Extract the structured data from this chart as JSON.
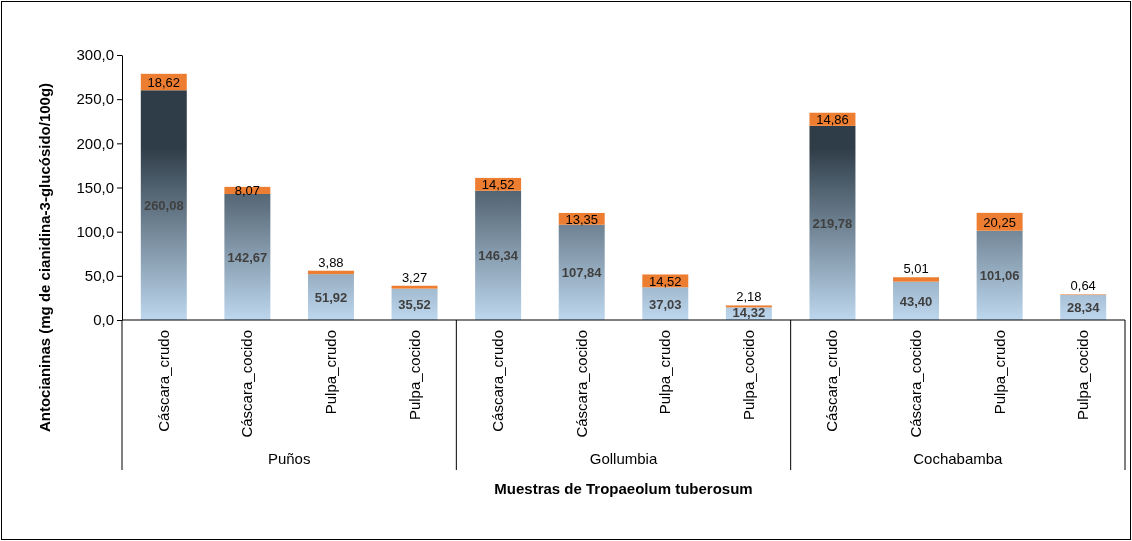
{
  "chart_data": {
    "type": "bar",
    "stacked": true,
    "grid": false,
    "ylabel": "Antocianinas (mg de cianidina-3-glucósido/100g)",
    "xlabel": "Muestras de Tropaeolum tuberosum",
    "categories": [
      "Cáscara_crudo",
      "Cáscara_cocido",
      "Pulpa_crudo",
      "Pulpa_cocido",
      "Cáscara_crudo",
      "Cáscara_cocido",
      "Pulpa_crudo",
      "Pulpa_cocido",
      "Cáscara_crudo",
      "Cáscara_cocido",
      "Pulpa_crudo",
      "Pulpa_cocido"
    ],
    "annotations": [
      "Puños",
      "Gollumbia",
      "Cochabamba"
    ],
    "ylim": [
      0,
      300
    ],
    "yticks": [
      {
        "value": 0,
        "label": "0,0"
      },
      {
        "value": 50,
        "label": "50,0"
      },
      {
        "value": 100,
        "label": "100,0"
      },
      {
        "value": 150,
        "label": "150,0"
      },
      {
        "value": 200,
        "label": "200,0"
      },
      {
        "value": 250,
        "label": "250,0"
      },
      {
        "value": 300,
        "label": "300,0"
      }
    ],
    "series": [
      {
        "color": "#2f3d48",
        "values": [
          260.08,
          142.67,
          51.92,
          35.52,
          146.34,
          107.84,
          37.03,
          14.32,
          219.78,
          43.4,
          101.06,
          28.34
        ],
        "value_labels": [
          "260,08",
          "142,67",
          "51,92",
          "35,52",
          "146,34",
          "107,84",
          "37,03",
          "14,32",
          "219,78",
          "43,40",
          "101,06",
          "28,34"
        ]
      },
      {
        "color": "#ed7d31",
        "values": [
          18.62,
          8.07,
          3.88,
          3.27,
          14.52,
          13.35,
          14.52,
          2.18,
          14.86,
          5.01,
          20.25,
          0.64
        ],
        "value_labels": [
          "18,62",
          "8,07",
          "3,88",
          "3,27",
          "14,52",
          "13,35",
          "14,52",
          "2,18",
          "14,86",
          "5,01",
          "20,25",
          "0,64"
        ]
      }
    ]
  }
}
